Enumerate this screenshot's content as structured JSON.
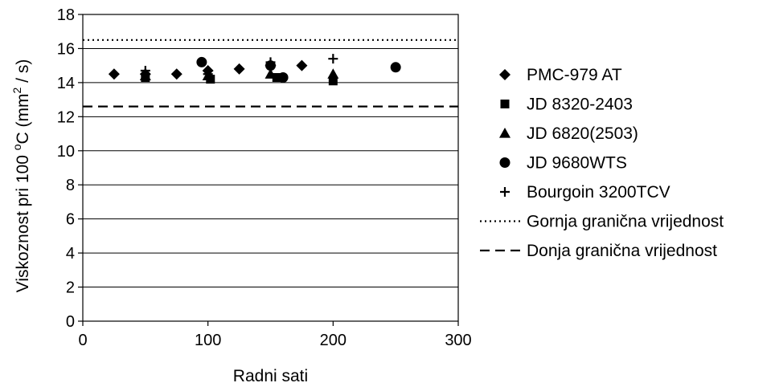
{
  "chart_data": {
    "type": "scatter",
    "xlabel": "Radni sati",
    "ylabel_main": "Viskoznost pri 100 ",
    "ylabel_degree": "o",
    "ylabel_unit_c": "C (mm",
    "ylabel_sq": "2",
    "ylabel_tail": " / s)",
    "xlim": [
      0,
      300
    ],
    "ylim": [
      0,
      18
    ],
    "xticks": [
      0,
      100,
      200,
      300
    ],
    "yticks": [
      0,
      2,
      4,
      6,
      8,
      10,
      12,
      14,
      16,
      18
    ],
    "xtick_labels": [
      "0",
      "100",
      "200",
      "300"
    ],
    "ytick_labels": [
      "0",
      "2",
      "4",
      "6",
      "8",
      "10",
      "12",
      "14",
      "16",
      "18"
    ],
    "grid": "horizontal",
    "legend_position": "right",
    "series": [
      {
        "name": "PMC-979 AT",
        "marker": "diamond",
        "points": [
          [
            25,
            14.5
          ],
          [
            50,
            14.5
          ],
          [
            75,
            14.5
          ],
          [
            100,
            14.7
          ],
          [
            125,
            14.8
          ],
          [
            150,
            15.0
          ],
          [
            175,
            15.0
          ]
        ]
      },
      {
        "name": "JD 8320-2403",
        "marker": "square",
        "points": [
          [
            50,
            14.3
          ],
          [
            102,
            14.2
          ],
          [
            155,
            14.3
          ],
          [
            200,
            14.1
          ]
        ]
      },
      {
        "name": "JD 6820(2503)",
        "marker": "triangle",
        "points": [
          [
            50,
            14.4
          ],
          [
            100,
            14.4
          ],
          [
            150,
            14.5
          ],
          [
            200,
            14.5
          ]
        ]
      },
      {
        "name": "JD 9680WTS",
        "marker": "circle",
        "points": [
          [
            95,
            15.2
          ],
          [
            150,
            15.0
          ],
          [
            160,
            14.3
          ],
          [
            250,
            14.9
          ]
        ]
      },
      {
        "name": "Bourgoin 3200TCV",
        "marker": "plus",
        "points": [
          [
            50,
            14.7
          ],
          [
            100,
            14.5
          ],
          [
            150,
            15.2
          ],
          [
            200,
            15.4
          ]
        ]
      }
    ],
    "reference_lines": [
      {
        "name": "Gornja granična vrijednost",
        "y": 16.5,
        "style": "dotted"
      },
      {
        "name": "Donja granična vrijednost",
        "y": 12.6,
        "style": "dashed"
      }
    ]
  }
}
